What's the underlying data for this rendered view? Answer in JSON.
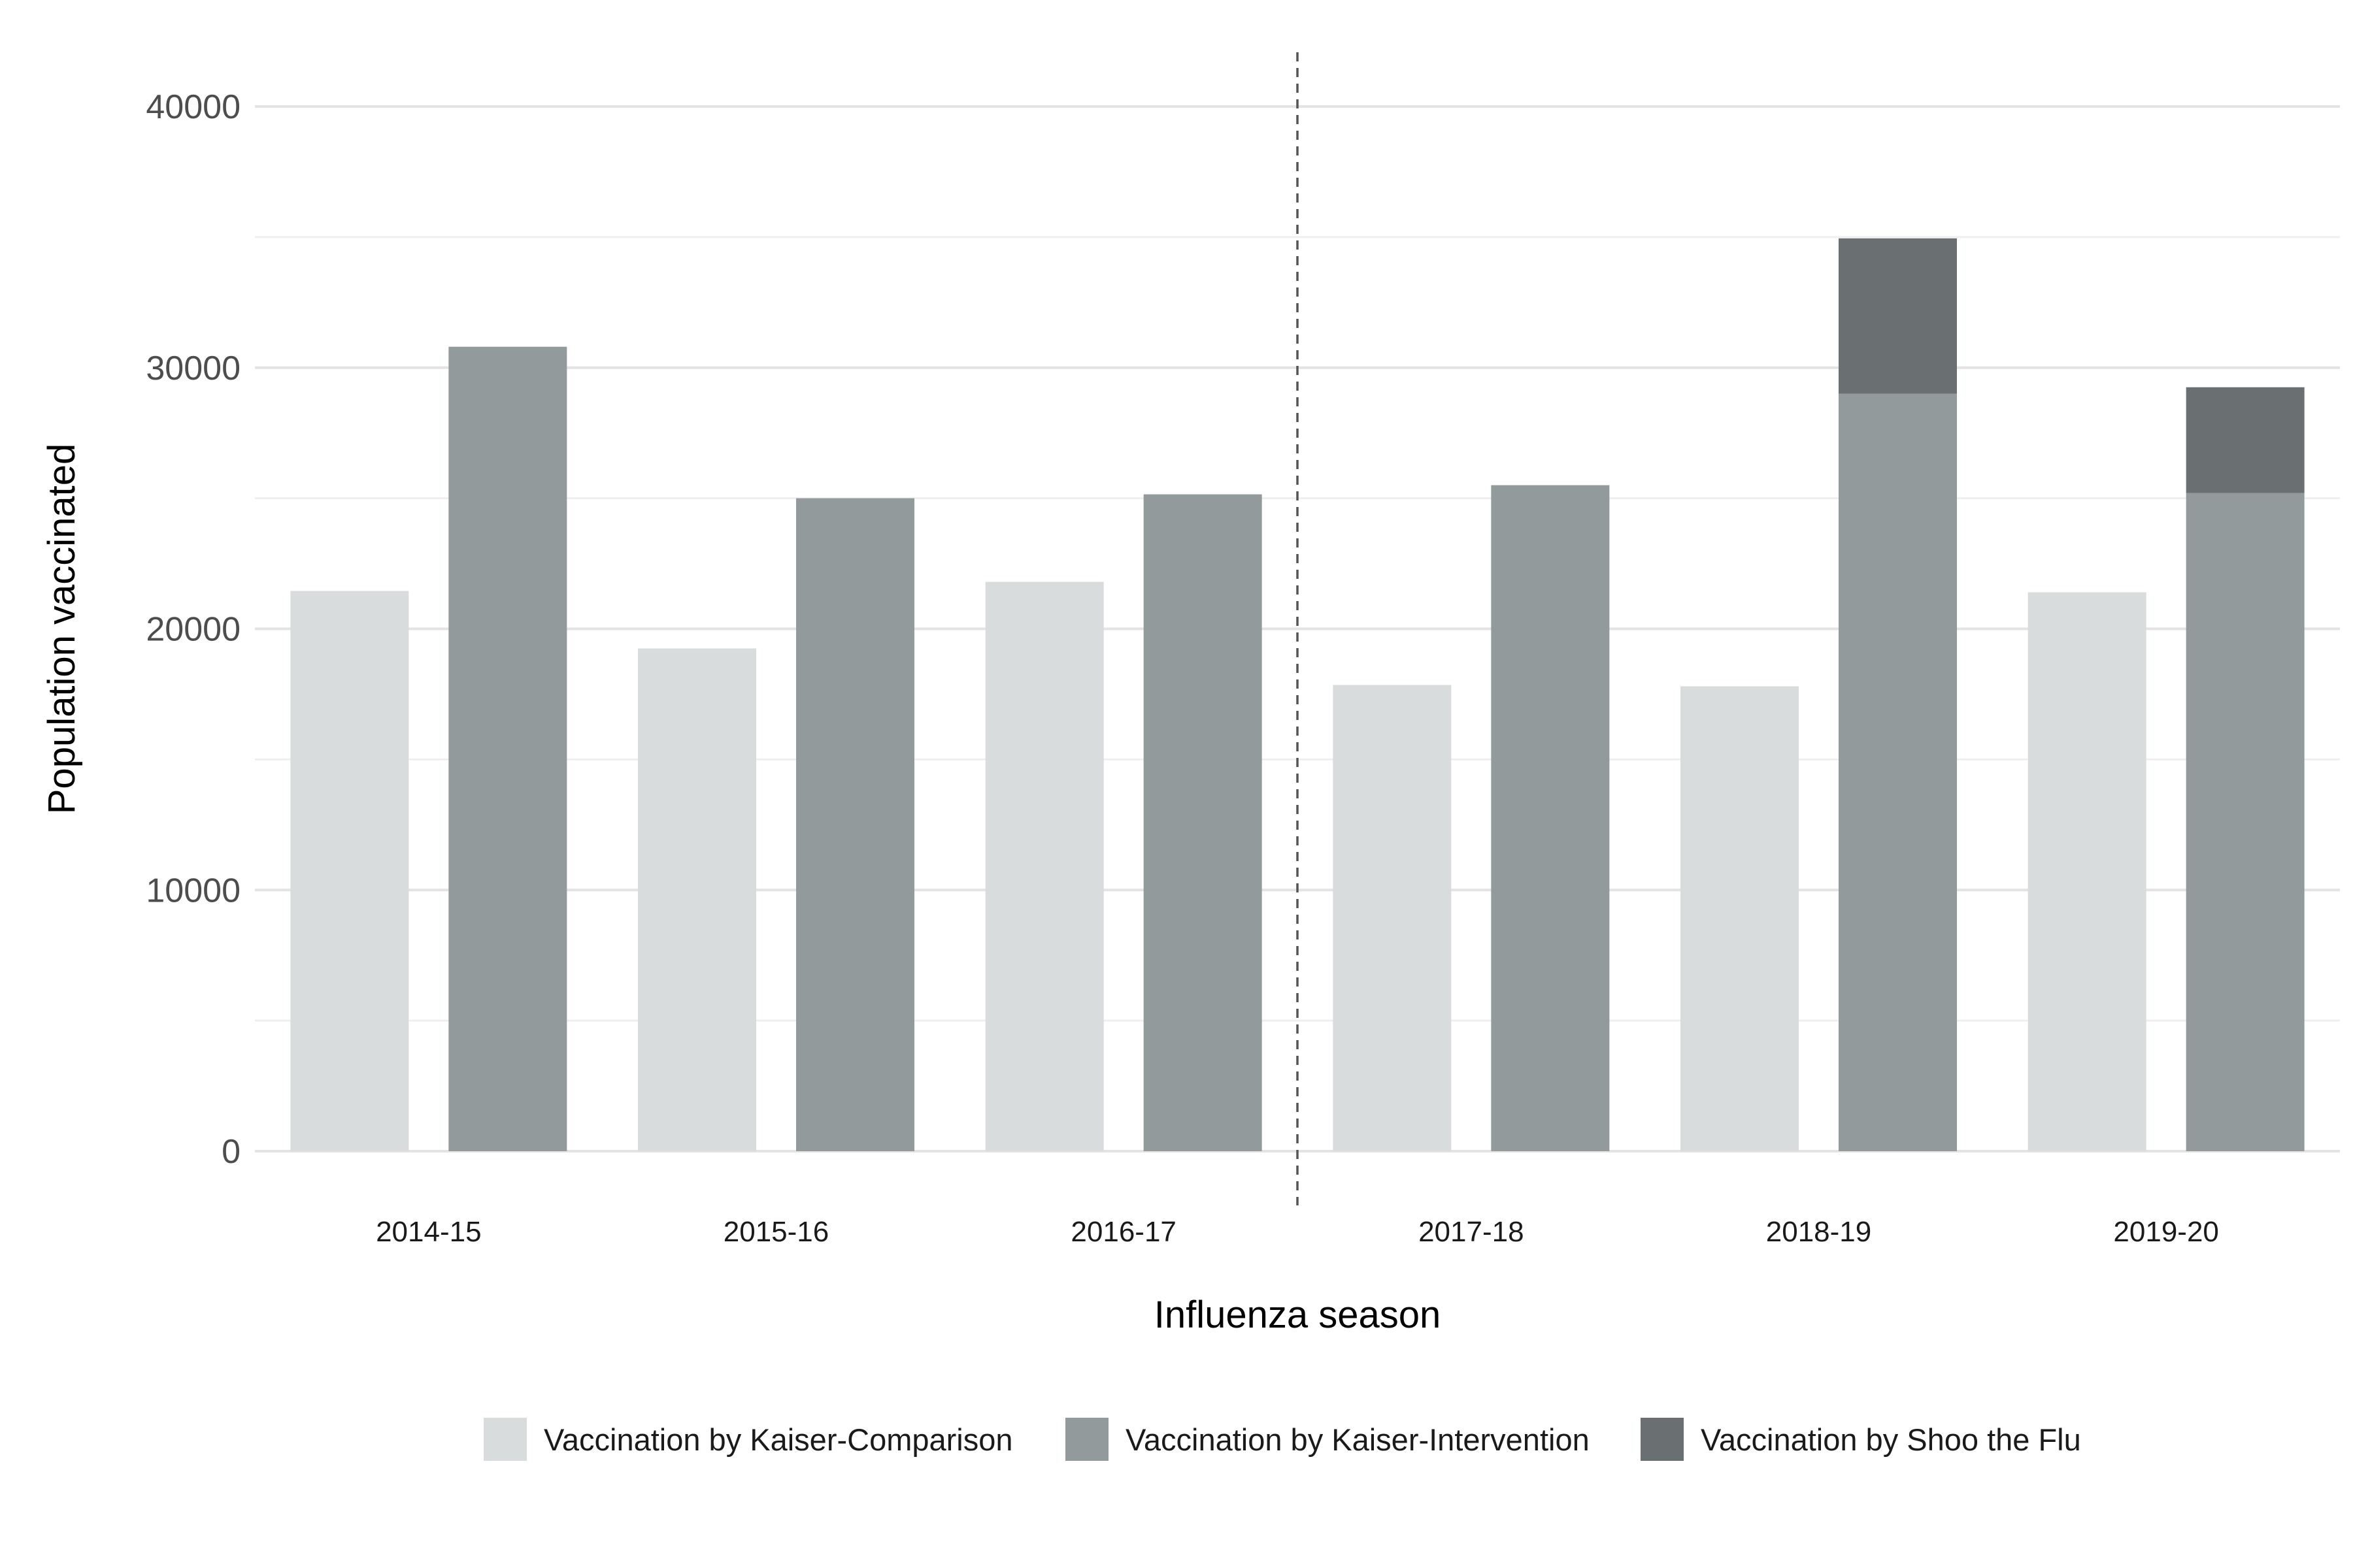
{
  "chart_data": {
    "type": "bar",
    "xlabel": "Influenza season",
    "ylabel": "Population vaccinated",
    "ylim": [
      0,
      42000
    ],
    "yticks": [
      0,
      10000,
      20000,
      30000,
      40000
    ],
    "categories": [
      "2014-15",
      "2015-16",
      "2016-17",
      "2017-18",
      "2018-19",
      "2019-20"
    ],
    "series": [
      {
        "name": "Vaccination by Kaiser-Comparison",
        "group": "comparison",
        "color": "#d9dcdc",
        "values": [
          21450,
          19250,
          21800,
          17850,
          17800,
          21400
        ]
      },
      {
        "name": "Vaccination by Kaiser-Intervention",
        "group": "intervention",
        "color": "#939a9c",
        "values": [
          30800,
          25000,
          25150,
          25500,
          29000,
          25200
        ]
      },
      {
        "name": "Vaccination by Shoo the Flu",
        "group": "intervention",
        "stacked_on": "Vaccination by Kaiser-Intervention",
        "color": "#6a7071",
        "values": [
          0,
          0,
          0,
          0,
          5950,
          4050
        ]
      }
    ],
    "reference_line": {
      "between": [
        "2016-17",
        "2017-18"
      ],
      "style": "dashed",
      "color": "#555555"
    },
    "grid": true,
    "legend_position": "bottom"
  }
}
